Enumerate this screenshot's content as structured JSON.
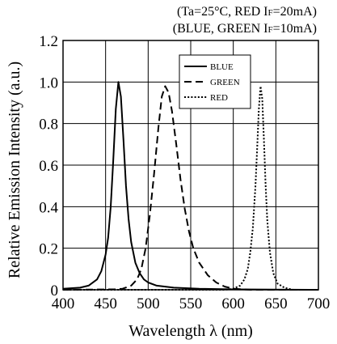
{
  "chart_data": {
    "type": "line",
    "conditions": [
      [
        "(Ta=25°C,   RED I",
        "F",
        "=20mA)"
      ],
      [
        "(BLUE, GREEN I",
        "F",
        "=10mA)"
      ]
    ],
    "xlabel": "Wavelength λ  (nm)",
    "ylabel": "Relative Emission Intensity  (a.u.)",
    "xlim": [
      400,
      700
    ],
    "ylim": [
      0,
      1.2
    ],
    "xticks": [
      "400",
      "450",
      "500",
      "550",
      "600",
      "650",
      "700"
    ],
    "yticks": [
      "0",
      "0.2",
      "0.4",
      "0.6",
      "0.8",
      "1.0",
      "1.2"
    ],
    "grid": true,
    "legend_position": "top-right",
    "series": [
      {
        "name": "BLUE",
        "line_style": "solid",
        "points": [
          [
            400,
            0.005
          ],
          [
            420,
            0.01
          ],
          [
            430,
            0.02
          ],
          [
            440,
            0.05
          ],
          [
            445,
            0.09
          ],
          [
            450,
            0.17
          ],
          [
            453,
            0.25
          ],
          [
            456,
            0.4
          ],
          [
            459,
            0.62
          ],
          [
            462,
            0.87
          ],
          [
            465,
            1.0
          ],
          [
            468,
            0.93
          ],
          [
            471,
            0.72
          ],
          [
            474,
            0.5
          ],
          [
            477,
            0.34
          ],
          [
            480,
            0.23
          ],
          [
            485,
            0.13
          ],
          [
            490,
            0.08
          ],
          [
            495,
            0.05
          ],
          [
            500,
            0.035
          ],
          [
            510,
            0.02
          ],
          [
            530,
            0.01
          ],
          [
            560,
            0.005
          ],
          [
            600,
            0.002
          ],
          [
            700,
            0.0
          ]
        ]
      },
      {
        "name": "GREEN",
        "line_style": "dashed",
        "points": [
          [
            400,
            0.0
          ],
          [
            460,
            0.002
          ],
          [
            470,
            0.005
          ],
          [
            480,
            0.02
          ],
          [
            487,
            0.05
          ],
          [
            492,
            0.1
          ],
          [
            497,
            0.2
          ],
          [
            502,
            0.36
          ],
          [
            507,
            0.56
          ],
          [
            512,
            0.78
          ],
          [
            516,
            0.93
          ],
          [
            520,
            0.98
          ],
          [
            524,
            0.95
          ],
          [
            528,
            0.86
          ],
          [
            533,
            0.7
          ],
          [
            538,
            0.53
          ],
          [
            543,
            0.39
          ],
          [
            548,
            0.28
          ],
          [
            553,
            0.2
          ],
          [
            560,
            0.13
          ],
          [
            570,
            0.07
          ],
          [
            580,
            0.035
          ],
          [
            590,
            0.015
          ],
          [
            600,
            0.005
          ],
          [
            620,
            0.0
          ],
          [
            700,
            0.0
          ]
        ]
      },
      {
        "name": "RED",
        "line_style": "dotted",
        "points": [
          [
            400,
            0.0
          ],
          [
            590,
            0.0
          ],
          [
            600,
            0.005
          ],
          [
            608,
            0.02
          ],
          [
            613,
            0.05
          ],
          [
            617,
            0.1
          ],
          [
            620,
            0.18
          ],
          [
            623,
            0.3
          ],
          [
            626,
            0.5
          ],
          [
            628,
            0.68
          ],
          [
            630,
            0.87
          ],
          [
            632,
            0.98
          ],
          [
            634,
            0.92
          ],
          [
            636,
            0.72
          ],
          [
            638,
            0.5
          ],
          [
            640,
            0.33
          ],
          [
            643,
            0.18
          ],
          [
            647,
            0.08
          ],
          [
            652,
            0.03
          ],
          [
            660,
            0.01
          ],
          [
            670,
            0.0
          ],
          [
            700,
            0.0
          ]
        ]
      }
    ]
  }
}
